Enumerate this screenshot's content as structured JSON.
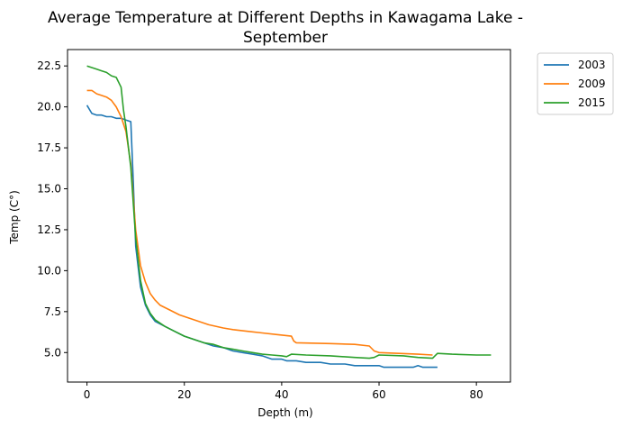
{
  "chart_data": {
    "type": "line",
    "title_lines": [
      "Average Temperature at Different Depths in Kawagama Lake -",
      "September"
    ],
    "xlabel": "Depth (m)",
    "ylabel": "Temp (C°)",
    "xlim": [
      -4,
      87
    ],
    "ylim": [
      3.2,
      23.5
    ],
    "xticks": [
      0,
      20,
      40,
      60,
      80
    ],
    "xtick_labels": [
      "0",
      "20",
      "40",
      "60",
      "80"
    ],
    "yticks": [
      5.0,
      7.5,
      10.0,
      12.5,
      15.0,
      17.5,
      20.0,
      22.5
    ],
    "ytick_labels": [
      "5.0",
      "7.5",
      "10.0",
      "12.5",
      "15.0",
      "17.5",
      "20.0",
      "22.5"
    ],
    "grid": false,
    "legend_position": "outside-top-right",
    "series": [
      {
        "name": "2003",
        "color": "#1f77b4",
        "points": [
          [
            0,
            20.1
          ],
          [
            1,
            19.6
          ],
          [
            2,
            19.5
          ],
          [
            3,
            19.5
          ],
          [
            4,
            19.4
          ],
          [
            5,
            19.4
          ],
          [
            6,
            19.3
          ],
          [
            7,
            19.3
          ],
          [
            8,
            19.2
          ],
          [
            9,
            19.1
          ],
          [
            9.5,
            15.5
          ],
          [
            10,
            11.5
          ],
          [
            11,
            9.0
          ],
          [
            12,
            7.9
          ],
          [
            13,
            7.3
          ],
          [
            14,
            6.9
          ],
          [
            16,
            6.6
          ],
          [
            18,
            6.3
          ],
          [
            20,
            6.0
          ],
          [
            22,
            5.8
          ],
          [
            24,
            5.6
          ],
          [
            26,
            5.4
          ],
          [
            28,
            5.3
          ],
          [
            30,
            5.1
          ],
          [
            32,
            5.0
          ],
          [
            34,
            4.9
          ],
          [
            36,
            4.8
          ],
          [
            38,
            4.6
          ],
          [
            40,
            4.6
          ],
          [
            41,
            4.5
          ],
          [
            43,
            4.5
          ],
          [
            45,
            4.4
          ],
          [
            48,
            4.4
          ],
          [
            50,
            4.3
          ],
          [
            53,
            4.3
          ],
          [
            55,
            4.2
          ],
          [
            60,
            4.2
          ],
          [
            61,
            4.1
          ],
          [
            67,
            4.1
          ],
          [
            68,
            4.2
          ],
          [
            69,
            4.1
          ],
          [
            72,
            4.1
          ]
        ]
      },
      {
        "name": "2009",
        "color": "#ff7f0e",
        "points": [
          [
            0,
            21.0
          ],
          [
            1,
            21.0
          ],
          [
            2,
            20.8
          ],
          [
            3,
            20.7
          ],
          [
            4,
            20.6
          ],
          [
            5,
            20.4
          ],
          [
            6,
            20.0
          ],
          [
            7,
            19.4
          ],
          [
            8,
            18.5
          ],
          [
            9,
            16.5
          ],
          [
            10,
            12.5
          ],
          [
            11,
            10.3
          ],
          [
            12,
            9.3
          ],
          [
            13,
            8.6
          ],
          [
            14,
            8.2
          ],
          [
            15,
            7.9
          ],
          [
            17,
            7.6
          ],
          [
            19,
            7.3
          ],
          [
            21,
            7.1
          ],
          [
            23,
            6.9
          ],
          [
            25,
            6.7
          ],
          [
            28,
            6.5
          ],
          [
            30,
            6.4
          ],
          [
            33,
            6.3
          ],
          [
            36,
            6.2
          ],
          [
            39,
            6.1
          ],
          [
            42,
            6.0
          ],
          [
            42.5,
            5.7
          ],
          [
            43,
            5.6
          ],
          [
            50,
            5.55
          ],
          [
            55,
            5.5
          ],
          [
            58,
            5.4
          ],
          [
            59,
            5.1
          ],
          [
            60,
            5.0
          ],
          [
            64,
            4.95
          ],
          [
            68,
            4.9
          ],
          [
            71,
            4.85
          ]
        ]
      },
      {
        "name": "2015",
        "color": "#2ca02c",
        "points": [
          [
            0,
            22.5
          ],
          [
            1,
            22.4
          ],
          [
            2,
            22.3
          ],
          [
            3,
            22.2
          ],
          [
            4,
            22.1
          ],
          [
            5,
            21.9
          ],
          [
            6,
            21.8
          ],
          [
            7,
            21.2
          ],
          [
            7.5,
            19.8
          ],
          [
            8,
            18.8
          ],
          [
            9,
            16.3
          ],
          [
            10,
            12.0
          ],
          [
            11,
            9.4
          ],
          [
            12,
            8.0
          ],
          [
            13,
            7.4
          ],
          [
            14,
            7.0
          ],
          [
            16,
            6.6
          ],
          [
            18,
            6.3
          ],
          [
            20,
            6.0
          ],
          [
            22,
            5.8
          ],
          [
            24,
            5.6
          ],
          [
            26,
            5.5
          ],
          [
            28,
            5.3
          ],
          [
            30,
            5.2
          ],
          [
            32,
            5.1
          ],
          [
            34,
            5.0
          ],
          [
            36,
            4.9
          ],
          [
            38,
            4.85
          ],
          [
            40,
            4.8
          ],
          [
            41,
            4.75
          ],
          [
            42,
            4.9
          ],
          [
            45,
            4.85
          ],
          [
            50,
            4.8
          ],
          [
            55,
            4.7
          ],
          [
            58,
            4.65
          ],
          [
            59,
            4.7
          ],
          [
            60,
            4.85
          ],
          [
            65,
            4.8
          ],
          [
            68,
            4.7
          ],
          [
            71,
            4.65
          ],
          [
            72,
            4.95
          ],
          [
            75,
            4.9
          ],
          [
            80,
            4.85
          ],
          [
            83,
            4.85
          ]
        ]
      }
    ]
  }
}
